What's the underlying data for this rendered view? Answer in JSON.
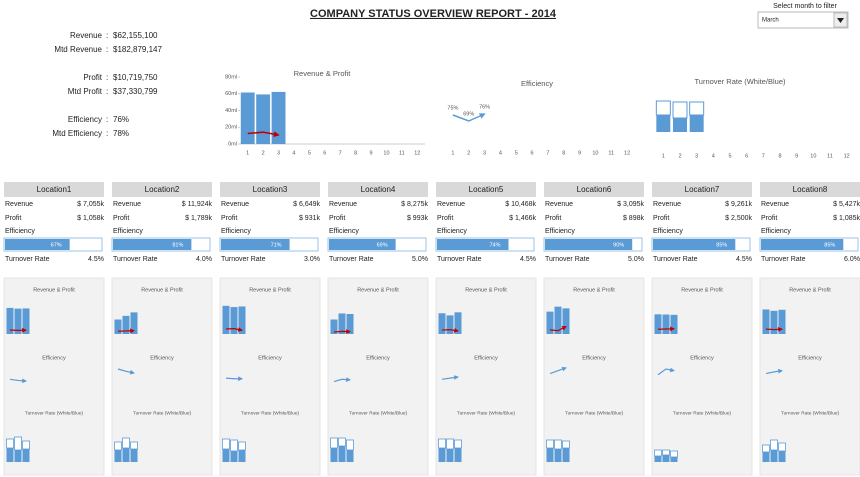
{
  "header": {
    "title": "COMPANY STATUS OVERVIEW REPORT - 2014",
    "filter_label": "Select month to filter",
    "filter_value": "March"
  },
  "summary": {
    "separator": ":",
    "items": [
      {
        "label": "Revenue",
        "value": "$62,155,100"
      },
      {
        "label": "Mtd Revenue",
        "value": "$182,879,147"
      },
      {
        "label": "Profit",
        "value": "$10,719,750"
      },
      {
        "label": "Mtd Profit",
        "value": "$37,330,799"
      },
      {
        "label": "Efficiency",
        "value": "76%"
      },
      {
        "label": "Mtd Efficiency",
        "value": "78%"
      }
    ]
  },
  "charts": {
    "months": [
      1,
      2,
      3,
      4,
      5,
      6,
      7,
      8,
      9,
      10,
      11,
      12
    ],
    "revenue_profit": {
      "type": "bar",
      "title": "Revenue & Profit",
      "ylim": [
        0,
        80
      ],
      "yticks": [
        {
          "value": 0,
          "label": "0ml"
        },
        {
          "value": 20,
          "label": "20ml"
        },
        {
          "value": 40,
          "label": "40ml"
        },
        {
          "value": 60,
          "label": "60ml"
        },
        {
          "value": 80,
          "label": "80ml"
        }
      ],
      "series": [
        {
          "color": "#5b9bd5",
          "values": [
            61.5,
            59.2,
            62.2,
            null,
            null,
            null,
            null,
            null,
            null,
            null,
            null,
            null
          ]
        },
        {
          "color": "#c00000",
          "values": [
            12.5,
            14.1,
            10.7,
            null,
            null,
            null,
            null,
            null,
            null,
            null,
            null,
            null
          ]
        }
      ]
    },
    "efficiency": {
      "type": "line",
      "title": "Efficiency",
      "ylim": [
        60,
        90
      ],
      "color": "#5b9bd5",
      "values": [
        75,
        69,
        76,
        null,
        null,
        null,
        null,
        null,
        null,
        null,
        null,
        null
      ],
      "value_labels": [
        "75%",
        "69%",
        "76%",
        null,
        null,
        null,
        null,
        null,
        null,
        null,
        null,
        null
      ]
    },
    "turnover": {
      "type": "stacked-bar",
      "title": "Turnover Rate (White/Blue)",
      "ylim": [
        0,
        32
      ],
      "series": [
        {
          "color": "#5b9bd5",
          "values": [
            17,
            14,
            17,
            null,
            null,
            null,
            null,
            null,
            null,
            null,
            null,
            null
          ]
        },
        {
          "color": "#ffffff",
          "values": [
            14,
            16,
            13,
            null,
            null,
            null,
            null,
            null,
            null,
            null,
            null,
            null
          ]
        }
      ]
    }
  },
  "locations": {
    "labels": {
      "revenue": "Revenue",
      "profit": "Profit",
      "efficiency": "Efficiency",
      "turnover": "Turnover Rate"
    },
    "efficiency_lim": [
      0,
      100
    ],
    "trend_efficiency_lim": [
      60,
      95
    ],
    "trend_turnover_lim": [
      0,
      32
    ],
    "items": [
      {
        "name": "Location1",
        "revenue": "$ 7,055k",
        "profit": "$ 1,058k",
        "efficiency": {
          "value": 67,
          "label": "67%"
        },
        "turnover": "4.5%",
        "trend": {
          "ylim": [
            0,
            8000
          ],
          "revenue": [
            7200,
            7000,
            7055
          ],
          "profit": [
            1100,
            1000,
            1058
          ],
          "efficiency": [
            70,
            68,
            67
          ],
          "turnover_blue": [
            14,
            12,
            13
          ],
          "turnover_white": [
            9,
            13,
            8
          ]
        }
      },
      {
        "name": "Location2",
        "revenue": "$ 11,924k",
        "profit": "$ 1,789k",
        "efficiency": {
          "value": 81,
          "label": "81%"
        },
        "turnover": "4.0%",
        "trend": {
          "ylim": [
            0,
            16000
          ],
          "revenue": [
            8000,
            10000,
            11924
          ],
          "profit": [
            1500,
            1700,
            1789
          ],
          "efficiency": [
            88,
            84,
            81
          ],
          "turnover_blue": [
            12,
            14,
            13
          ],
          "turnover_white": [
            8,
            10,
            7
          ]
        }
      },
      {
        "name": "Location3",
        "revenue": "$ 6,649k",
        "profit": "$ 931k",
        "efficiency": {
          "value": 71,
          "label": "71%"
        },
        "turnover": "3.0%",
        "trend": {
          "ylim": [
            0,
            7000
          ],
          "revenue": [
            6800,
            6500,
            6649
          ],
          "profit": [
            1200,
            1300,
            931
          ],
          "efficiency": [
            72,
            71,
            71
          ],
          "turnover_blue": [
            13,
            11,
            12
          ],
          "turnover_white": [
            10,
            11,
            8
          ]
        }
      },
      {
        "name": "Location4",
        "revenue": "$ 8,275k",
        "profit": "$ 993k",
        "efficiency": {
          "value": 69,
          "label": "69%"
        },
        "turnover": "5.0%",
        "trend": {
          "ylim": [
            0,
            12000
          ],
          "revenue": [
            6000,
            8500,
            8275
          ],
          "profit": [
            800,
            1100,
            993
          ],
          "efficiency": [
            66,
            70,
            69
          ],
          "turnover_blue": [
            14,
            16,
            12
          ],
          "turnover_white": [
            10,
            8,
            10
          ]
        }
      },
      {
        "name": "Location5",
        "revenue": "$ 10,468k",
        "profit": "$ 1,466k",
        "efficiency": {
          "value": 74,
          "label": "74%"
        },
        "turnover": "4.5%",
        "trend": {
          "ylim": [
            0,
            14000
          ],
          "revenue": [
            10000,
            9000,
            10468
          ],
          "profit": [
            1900,
            2100,
            1466
          ],
          "efficiency": [
            70,
            72,
            74
          ],
          "turnover_blue": [
            14,
            13,
            14
          ],
          "turnover_white": [
            9,
            10,
            8
          ]
        }
      },
      {
        "name": "Location6",
        "revenue": "$ 3,095k",
        "profit": "$ 898k",
        "efficiency": {
          "value": 90,
          "label": "90%"
        },
        "turnover": "5.0%",
        "trend": {
          "ylim": [
            0,
            3500
          ],
          "revenue": [
            2700,
            3300,
            3095
          ],
          "profit": [
            500,
            400,
            898
          ],
          "efficiency": [
            80,
            85,
            90
          ],
          "turnover_blue": [
            14,
            13,
            14
          ],
          "turnover_white": [
            8,
            9,
            7
          ]
        }
      },
      {
        "name": "Location7",
        "revenue": "$ 9,261k",
        "profit": "$ 2,500k",
        "efficiency": {
          "value": 85,
          "label": "85%"
        },
        "turnover": "4.5%",
        "trend": {
          "ylim": [
            0,
            14000
          ],
          "revenue": [
            9500,
            9400,
            9261
          ],
          "profit": [
            2300,
            2400,
            2500
          ],
          "efficiency": [
            78,
            88,
            85
          ],
          "turnover_blue": [
            6,
            7,
            5
          ],
          "turnover_white": [
            6,
            5,
            6
          ]
        }
      },
      {
        "name": "Location8",
        "revenue": "$ 5,427k",
        "profit": "$ 1,085k",
        "efficiency": {
          "value": 85,
          "label": "85%"
        },
        "turnover": "6.0%",
        "trend": {
          "ylim": [
            0,
            6500
          ],
          "revenue": [
            5500,
            5200,
            5427
          ],
          "profit": [
            1100,
            1000,
            1085
          ],
          "efficiency": [
            80,
            83,
            85
          ],
          "turnover_blue": [
            10,
            12,
            11
          ],
          "turnover_white": [
            7,
            10,
            8
          ]
        }
      }
    ]
  }
}
